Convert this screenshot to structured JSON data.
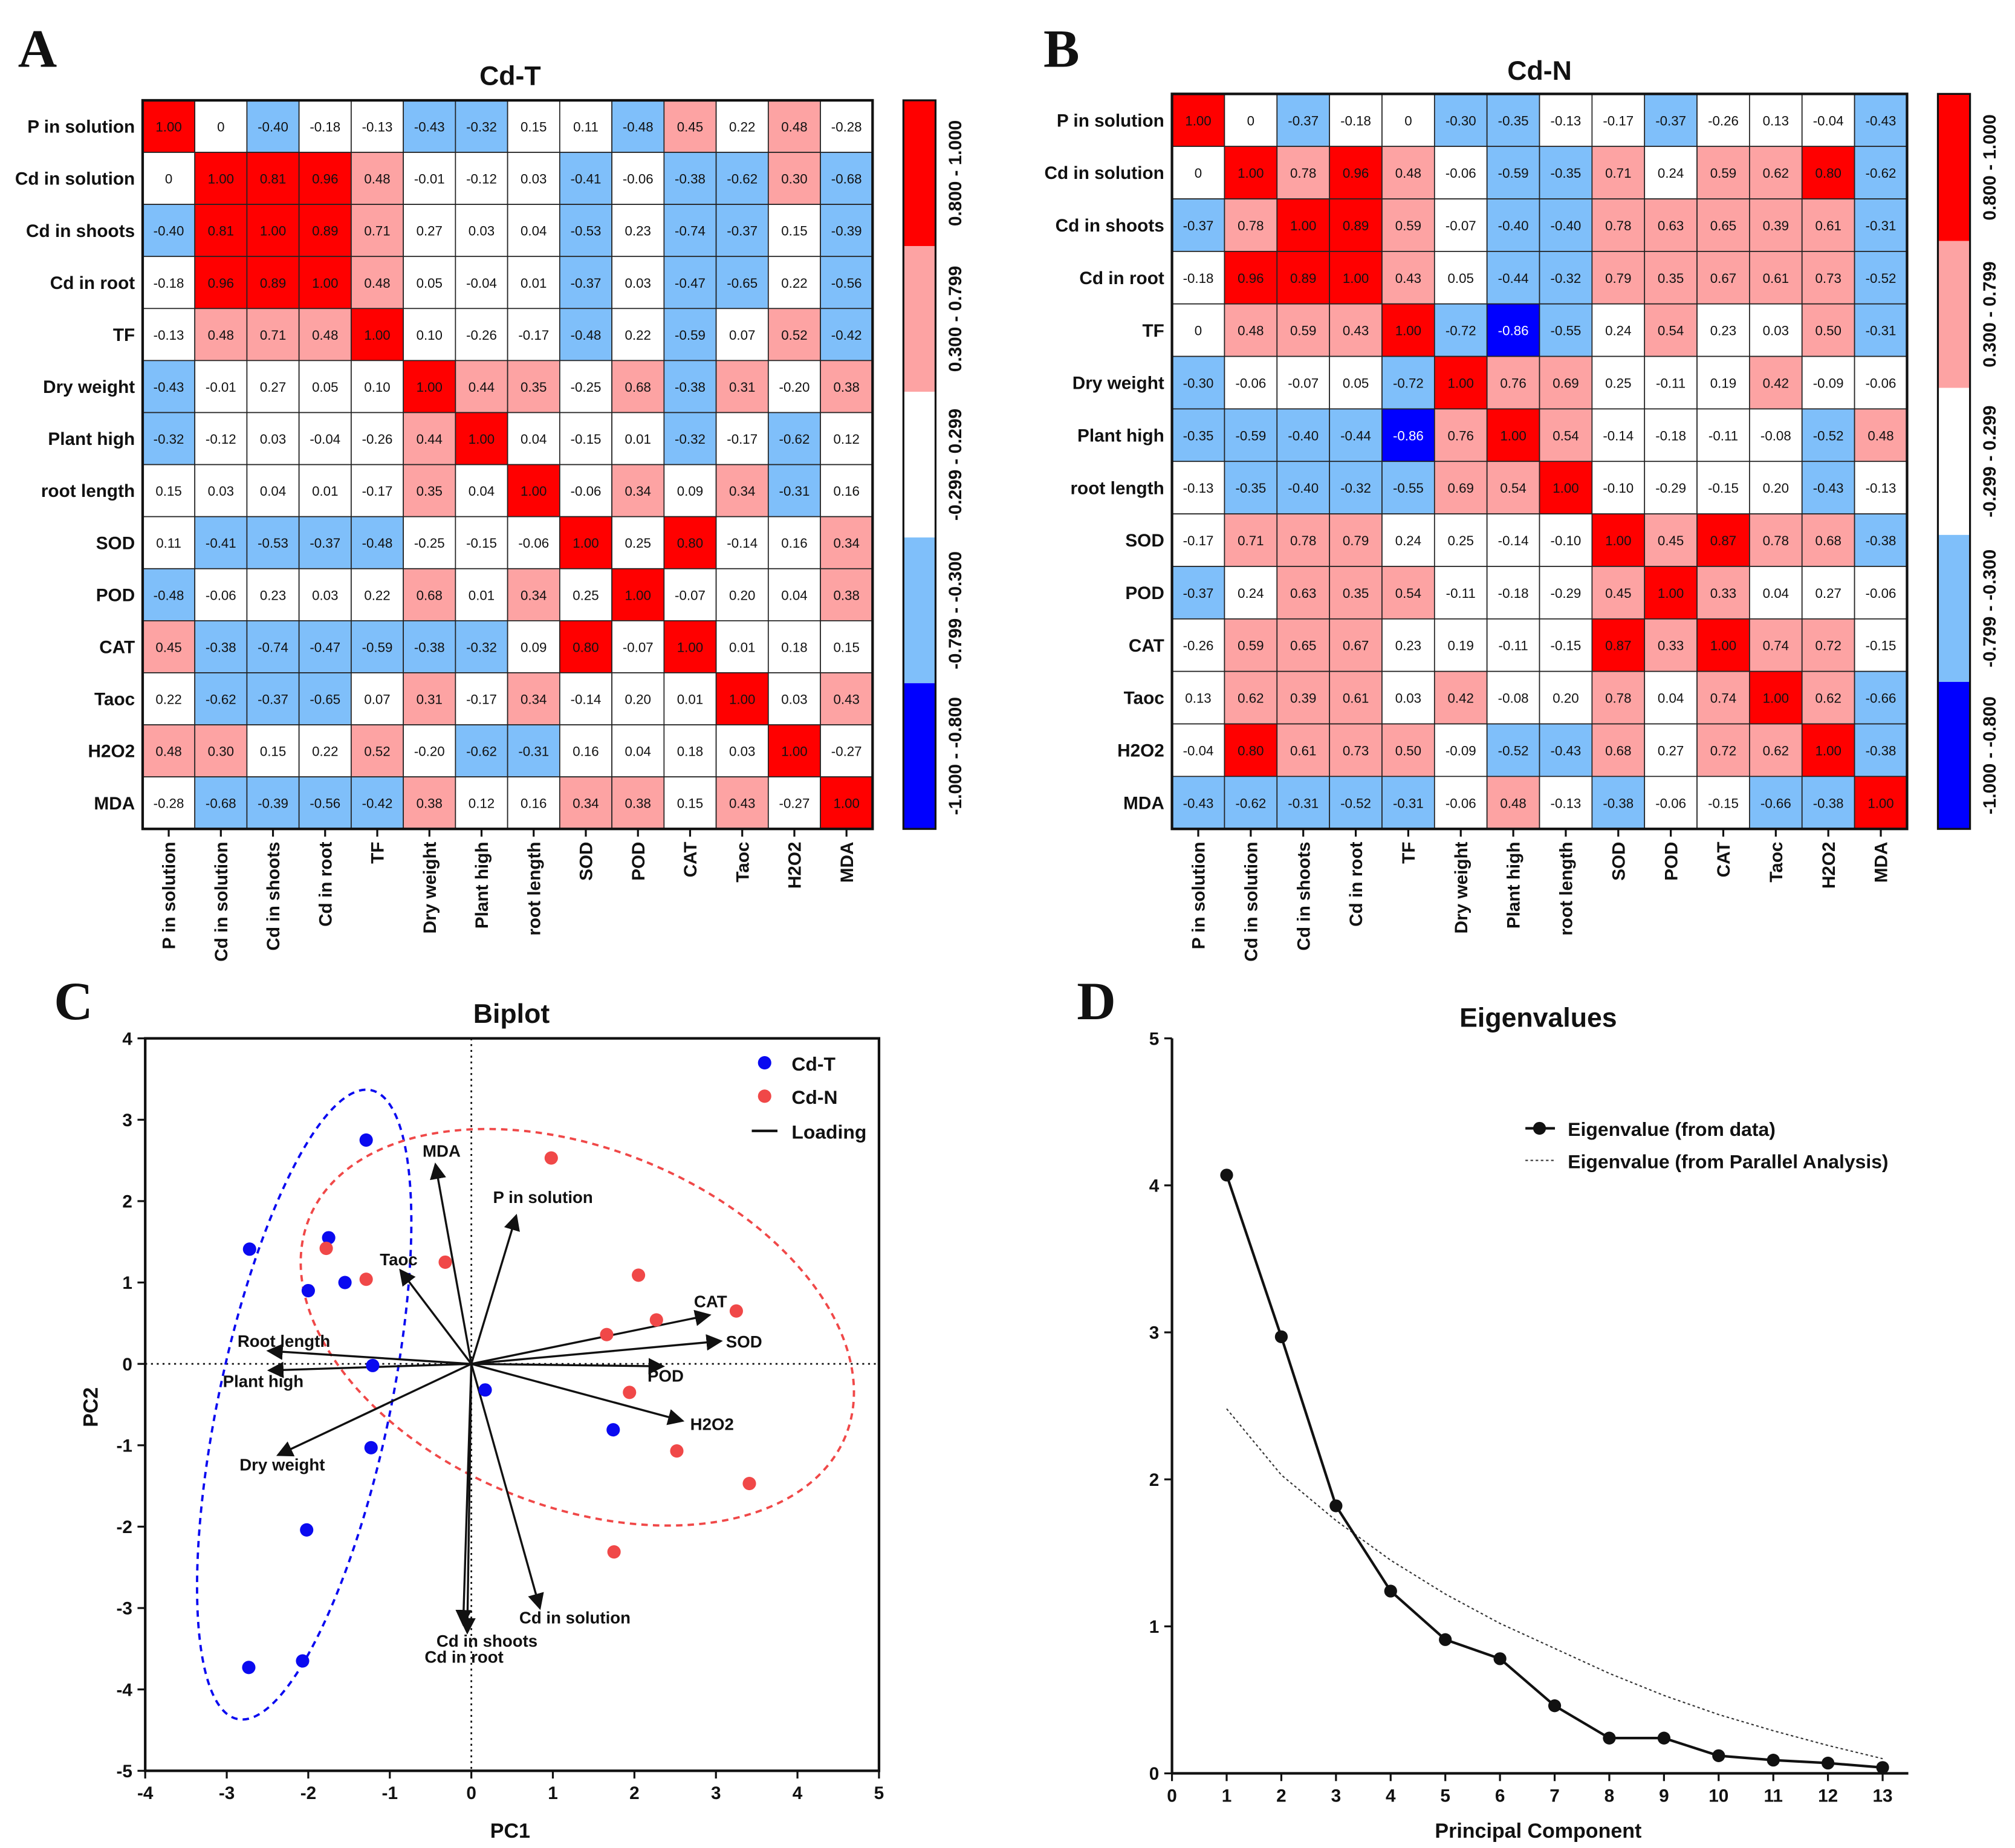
{
  "panels": [
    "A",
    "B",
    "C",
    "D"
  ],
  "colors": {
    "strong_pos": "#ff0000",
    "pos": "#fda3a3",
    "neutral": "#ffffff",
    "neg": "#7fbffa",
    "strong_neg": "#0000ff",
    "cd_t": "#0a0af0",
    "cd_n": "#f04848"
  },
  "colorbar_labels": [
    "0.800 - 1.000",
    "0.300 - 0.799",
    "-0.299 - 0.299",
    "-0.799 - -0.300",
    "-1.000 - -0.800"
  ],
  "chart_data": [
    {
      "type": "heatmap",
      "title": "Cd-T",
      "variables": [
        "P in solution",
        "Cd in solution",
        "Cd in shoots",
        "Cd in root",
        "TF",
        "Dry weight",
        "Plant high",
        "root length",
        "SOD",
        "POD",
        "CAT",
        "Taoc",
        "H2O2",
        "MDA"
      ],
      "labels": [
        [
          "1.00",
          "0",
          "-0.40",
          "-0.18",
          "-0.13",
          "-0.43",
          "-0.32",
          "0.15",
          "0.11",
          "-0.48",
          "0.45",
          "0.22",
          "0.48",
          "-0.28"
        ],
        [
          "0",
          "1.00",
          "0.81",
          "0.96",
          "0.48",
          "-0.01",
          "-0.12",
          "0.03",
          "-0.41",
          "-0.06",
          "-0.38",
          "-0.62",
          "0.30",
          "-0.68"
        ],
        [
          "-0.40",
          "0.81",
          "1.00",
          "0.89",
          "0.71",
          "0.27",
          "0.03",
          "0.04",
          "-0.53",
          "0.23",
          "-0.74",
          "-0.37",
          "0.15",
          "-0.39"
        ],
        [
          "-0.18",
          "0.96",
          "0.89",
          "1.00",
          "0.48",
          "0.05",
          "-0.04",
          "0.01",
          "-0.37",
          "0.03",
          "-0.47",
          "-0.65",
          "0.22",
          "-0.56"
        ],
        [
          "-0.13",
          "0.48",
          "0.71",
          "0.48",
          "1.00",
          "0.10",
          "-0.26",
          "-0.17",
          "-0.48",
          "0.22",
          "-0.59",
          "0.07",
          "0.52",
          "-0.42"
        ],
        [
          "-0.43",
          "-0.01",
          "0.27",
          "0.05",
          "0.10",
          "1.00",
          "0.44",
          "0.35",
          "-0.25",
          "0.68",
          "-0.38",
          "0.31",
          "-0.20",
          "0.38"
        ],
        [
          "-0.32",
          "-0.12",
          "0.03",
          "-0.04",
          "-0.26",
          "0.44",
          "1.00",
          "0.04",
          "-0.15",
          "0.01",
          "-0.32",
          "-0.17",
          "-0.62",
          "0.12"
        ],
        [
          "0.15",
          "0.03",
          "0.04",
          "0.01",
          "-0.17",
          "0.35",
          "0.04",
          "1.00",
          "-0.06",
          "0.34",
          "0.09",
          "0.34",
          "-0.31",
          "0.16"
        ],
        [
          "0.11",
          "-0.41",
          "-0.53",
          "-0.37",
          "-0.48",
          "-0.25",
          "-0.15",
          "-0.06",
          "1.00",
          "0.25",
          "0.80",
          "-0.14",
          "0.16",
          "0.34"
        ],
        [
          "-0.48",
          "-0.06",
          "0.23",
          "0.03",
          "0.22",
          "0.68",
          "0.01",
          "0.34",
          "0.25",
          "1.00",
          "-0.07",
          "0.20",
          "0.04",
          "0.38"
        ],
        [
          "0.45",
          "-0.38",
          "-0.74",
          "-0.47",
          "-0.59",
          "-0.38",
          "-0.32",
          "0.09",
          "0.80",
          "-0.07",
          "1.00",
          "0.01",
          "0.18",
          "0.15"
        ],
        [
          "0.22",
          "-0.62",
          "-0.37",
          "-0.65",
          "0.07",
          "0.31",
          "-0.17",
          "0.34",
          "-0.14",
          "0.20",
          "0.01",
          "1.00",
          "0.03",
          "0.43"
        ],
        [
          "0.48",
          "0.30",
          "0.15",
          "0.22",
          "0.52",
          "-0.20",
          "-0.62",
          "-0.31",
          "0.16",
          "0.04",
          "0.18",
          "0.03",
          "1.00",
          "-0.27"
        ],
        [
          "-0.28",
          "-0.68",
          "-0.39",
          "-0.56",
          "-0.42",
          "0.38",
          "0.12",
          "0.16",
          "0.34",
          "0.38",
          "0.15",
          "0.43",
          "-0.27",
          "1.00"
        ]
      ],
      "range": [
        -1,
        1
      ]
    },
    {
      "type": "heatmap",
      "title": "Cd-N",
      "variables": [
        "P in solution",
        "Cd in solution",
        "Cd in shoots",
        "Cd in root",
        "TF",
        "Dry weight",
        "Plant high",
        "root length",
        "SOD",
        "POD",
        "CAT",
        "Taoc",
        "H2O2",
        "MDA"
      ],
      "labels": [
        [
          "1.00",
          "0",
          "-0.37",
          "-0.18",
          "0",
          "-0.30",
          "-0.35",
          "-0.13",
          "-0.17",
          "-0.37",
          "-0.26",
          "0.13",
          "-0.04",
          "-0.43"
        ],
        [
          "0",
          "1.00",
          "0.78",
          "0.96",
          "0.48",
          "-0.06",
          "-0.59",
          "-0.35",
          "0.71",
          "0.24",
          "0.59",
          "0.62",
          "0.80",
          "-0.62"
        ],
        [
          "-0.37",
          "0.78",
          "1.00",
          "0.89",
          "0.59",
          "-0.07",
          "-0.40",
          "-0.40",
          "0.78",
          "0.63",
          "0.65",
          "0.39",
          "0.61",
          "-0.31"
        ],
        [
          "-0.18",
          "0.96",
          "0.89",
          "1.00",
          "0.43",
          "0.05",
          "-0.44",
          "-0.32",
          "0.79",
          "0.35",
          "0.67",
          "0.61",
          "0.73",
          "-0.52"
        ],
        [
          "0",
          "0.48",
          "0.59",
          "0.43",
          "1.00",
          "-0.72",
          "-0.86",
          "-0.55",
          "0.24",
          "0.54",
          "0.23",
          "0.03",
          "0.50",
          "-0.31"
        ],
        [
          "-0.30",
          "-0.06",
          "-0.07",
          "0.05",
          "-0.72",
          "1.00",
          "0.76",
          "0.69",
          "0.25",
          "-0.11",
          "0.19",
          "0.42",
          "-0.09",
          "-0.06"
        ],
        [
          "-0.35",
          "-0.59",
          "-0.40",
          "-0.44",
          "-0.86",
          "0.76",
          "1.00",
          "0.54",
          "-0.14",
          "-0.18",
          "-0.11",
          "-0.08",
          "-0.52",
          "0.48"
        ],
        [
          "-0.13",
          "-0.35",
          "-0.40",
          "-0.32",
          "-0.55",
          "0.69",
          "0.54",
          "1.00",
          "-0.10",
          "-0.29",
          "-0.15",
          "0.20",
          "-0.43",
          "-0.13"
        ],
        [
          "-0.17",
          "0.71",
          "0.78",
          "0.79",
          "0.24",
          "0.25",
          "-0.14",
          "-0.10",
          "1.00",
          "0.45",
          "0.87",
          "0.78",
          "0.68",
          "-0.38"
        ],
        [
          "-0.37",
          "0.24",
          "0.63",
          "0.35",
          "0.54",
          "-0.11",
          "-0.18",
          "-0.29",
          "0.45",
          "1.00",
          "0.33",
          "0.04",
          "0.27",
          "-0.06"
        ],
        [
          "-0.26",
          "0.59",
          "0.65",
          "0.67",
          "0.23",
          "0.19",
          "-0.11",
          "-0.15",
          "0.87",
          "0.33",
          "1.00",
          "0.74",
          "0.72",
          "-0.15"
        ],
        [
          "0.13",
          "0.62",
          "0.39",
          "0.61",
          "0.03",
          "0.42",
          "-0.08",
          "0.20",
          "0.78",
          "0.04",
          "0.74",
          "1.00",
          "0.62",
          "-0.66"
        ],
        [
          "-0.04",
          "0.80",
          "0.61",
          "0.73",
          "0.50",
          "-0.09",
          "-0.52",
          "-0.43",
          "0.68",
          "0.27",
          "0.72",
          "0.62",
          "1.00",
          "-0.38"
        ],
        [
          "-0.43",
          "-0.62",
          "-0.31",
          "-0.52",
          "-0.31",
          "-0.06",
          "0.48",
          "-0.13",
          "-0.38",
          "-0.06",
          "-0.15",
          "-0.66",
          "-0.38",
          "1.00"
        ]
      ],
      "range": [
        -1,
        1
      ]
    },
    {
      "type": "scatter",
      "title": "Biplot",
      "xlabel": "PC1",
      "ylabel": "PC2",
      "xlim": [
        -4,
        5
      ],
      "ylim": [
        -5,
        4
      ],
      "xticks": [
        "-4",
        "-3",
        "-2",
        "-1",
        "0",
        "1",
        "2",
        "3",
        "4",
        "5"
      ],
      "yticks": [
        "-5",
        "-4",
        "-3",
        "-2",
        "-1",
        "0",
        "1",
        "2",
        "3",
        "4"
      ],
      "legend": [
        "Cd-T",
        "Cd-N",
        "Loading"
      ],
      "legend_position": "top-right",
      "series": [
        {
          "name": "Cd-T",
          "points": [
            [
              -1.29,
              2.75
            ],
            [
              -2.72,
              1.41
            ],
            [
              -1.75,
              1.55
            ],
            [
              -2.0,
              0.9
            ],
            [
              -1.55,
              1.0
            ],
            [
              -1.21,
              -0.02
            ],
            [
              0.17,
              -0.32
            ],
            [
              1.74,
              -0.81
            ],
            [
              -1.23,
              -1.03
            ],
            [
              -2.02,
              -2.04
            ],
            [
              -2.73,
              -3.73
            ],
            [
              -2.07,
              -3.65
            ]
          ],
          "ellipse": {
            "center": [
              -2.05,
              -0.5
            ],
            "radii": [
              1.05,
              3.95
            ],
            "angle_deg": -12
          }
        },
        {
          "name": "Cd-N",
          "points": [
            [
              0.98,
              2.53
            ],
            [
              -1.78,
              1.42
            ],
            [
              -1.29,
              1.04
            ],
            [
              -0.32,
              1.25
            ],
            [
              2.05,
              1.09
            ],
            [
              2.27,
              0.54
            ],
            [
              3.25,
              0.65
            ],
            [
              1.66,
              0.36
            ],
            [
              1.94,
              -0.35
            ],
            [
              2.52,
              -1.07
            ],
            [
              3.41,
              -1.47
            ],
            [
              1.75,
              -2.31
            ]
          ],
          "ellipse": {
            "center": [
              1.3,
              0.45
            ],
            "radii": [
              3.55,
              2.2
            ],
            "angle_deg": -22
          }
        }
      ],
      "loadings": [
        {
          "name": "MDA",
          "xy": [
            -0.44,
            2.45
          ]
        },
        {
          "name": "P in solution",
          "xy": [
            0.55,
            1.82
          ]
        },
        {
          "name": "Taoc",
          "xy": [
            -0.87,
            1.15
          ]
        },
        {
          "name": "CAT",
          "xy": [
            2.92,
            0.6
          ]
        },
        {
          "name": "SOD",
          "xy": [
            3.06,
            0.28
          ]
        },
        {
          "name": "POD",
          "xy": [
            2.35,
            -0.03
          ]
        },
        {
          "name": "H2O2",
          "xy": [
            2.59,
            -0.7
          ]
        },
        {
          "name": "Cd in solution",
          "xy": [
            0.84,
            -3.0
          ]
        },
        {
          "name": "Cd in shoots",
          "xy": [
            -0.05,
            -3.3
          ]
        },
        {
          "name": "Cd in root",
          "xy": [
            -0.1,
            -3.2
          ]
        },
        {
          "name": "Dry weight",
          "xy": [
            -2.37,
            -1.12
          ]
        },
        {
          "name": "Plant high",
          "xy": [
            -2.48,
            -0.08
          ]
        },
        {
          "name": "Root length",
          "xy": [
            -2.49,
            0.16
          ]
        }
      ]
    },
    {
      "type": "line",
      "title": "Eigenvalues",
      "xlabel": "Principal Component",
      "ylabel": "",
      "xlim": [
        0,
        13
      ],
      "ylim": [
        0,
        5
      ],
      "xticks": [
        "0",
        "1",
        "2",
        "3",
        "4",
        "5",
        "6",
        "7",
        "8",
        "9",
        "10",
        "11",
        "12",
        "13"
      ],
      "yticks": [
        "0",
        "1",
        "2",
        "3",
        "4",
        "5"
      ],
      "legend_position": "top-right",
      "x": [
        1,
        2,
        3,
        4,
        5,
        6,
        7,
        8,
        9,
        10,
        11,
        12,
        13
      ],
      "series": [
        {
          "name": "Eigenvalue (from data)",
          "values": [
            4.07,
            2.97,
            1.82,
            1.24,
            0.91,
            0.78,
            0.46,
            0.24,
            0.24,
            0.12,
            0.09,
            0.07,
            0.04
          ]
        },
        {
          "name": "Eigenvalue (from Parallel Analysis)",
          "values": [
            2.48,
            2.03,
            1.72,
            1.45,
            1.22,
            1.02,
            0.85,
            0.68,
            0.53,
            0.4,
            0.29,
            0.19,
            0.1
          ]
        }
      ]
    }
  ]
}
